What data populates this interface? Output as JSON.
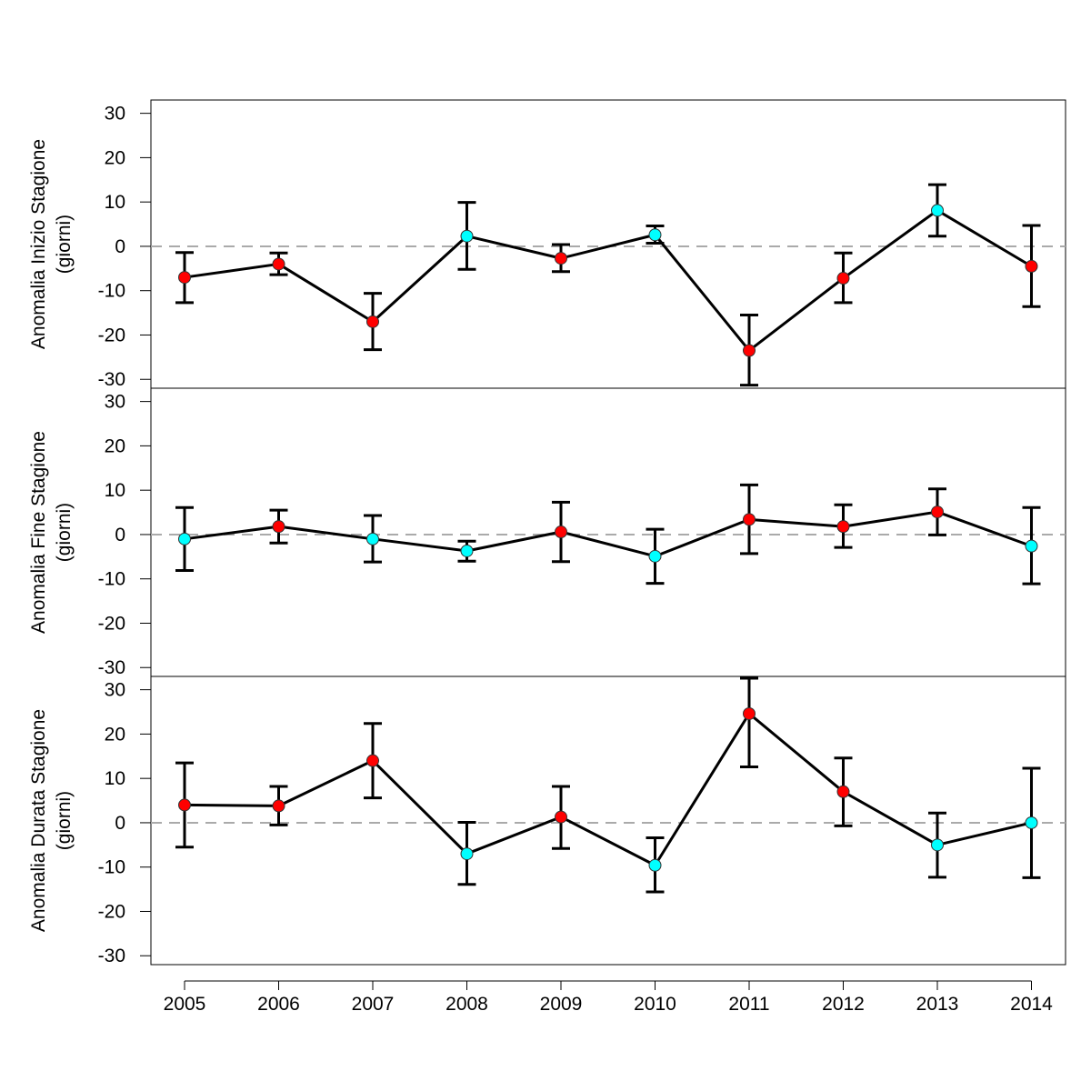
{
  "chart_data": [
    {
      "type": "line",
      "ylabel_line1": "Anomalia Inizio Stagione",
      "ylabel_line2": "(giorni)",
      "ylim": [
        -32,
        33
      ],
      "yticks": [
        -30,
        -20,
        -10,
        0,
        10,
        20,
        30
      ],
      "reference_line": 0,
      "x": [
        2005,
        2006,
        2007,
        2008,
        2009,
        2010,
        2011,
        2012,
        2013,
        2014
      ],
      "values": [
        -7,
        -4,
        -17,
        2.3,
        -2.7,
        2.6,
        -23.5,
        -7.2,
        8.1,
        -4.5
      ],
      "err_low": [
        -12.7,
        -6.4,
        -23.3,
        -5.2,
        -5.7,
        0.7,
        -31.3,
        -12.7,
        2.3,
        -13.6
      ],
      "err_high": [
        -1.4,
        -1.5,
        -10.6,
        9.9,
        0.4,
        4.6,
        -15.5,
        -1.5,
        13.9,
        4.7
      ],
      "point_colors": [
        "red",
        "red",
        "red",
        "cyan",
        "red",
        "cyan",
        "red",
        "red",
        "cyan",
        "red"
      ]
    },
    {
      "type": "line",
      "ylabel_line1": "Anomalia Fine Stagione",
      "ylabel_line2": "(giorni)",
      "ylim": [
        -32,
        33
      ],
      "yticks": [
        -30,
        -20,
        -10,
        0,
        10,
        20,
        30
      ],
      "reference_line": 0,
      "x": [
        2005,
        2006,
        2007,
        2008,
        2009,
        2010,
        2011,
        2012,
        2013,
        2014
      ],
      "values": [
        -1,
        1.8,
        -1,
        -3.7,
        0.6,
        -4.9,
        3.4,
        1.8,
        5.1,
        -2.6
      ],
      "err_low": [
        -8.1,
        -1.9,
        -6.2,
        -6,
        -6.1,
        -11,
        -4.3,
        -2.9,
        -0.1,
        -11.1
      ],
      "err_high": [
        6.1,
        5.5,
        4.3,
        -1.5,
        7.3,
        1.2,
        11.2,
        6.7,
        10.3,
        6.1
      ],
      "point_colors": [
        "cyan",
        "red",
        "cyan",
        "cyan",
        "red",
        "cyan",
        "red",
        "red",
        "red",
        "cyan"
      ]
    },
    {
      "type": "line",
      "ylabel_line1": "Anomalia Durata Stagione",
      "ylabel_line2": "(giorni)",
      "ylim": [
        -32,
        33
      ],
      "yticks": [
        -30,
        -20,
        -10,
        0,
        10,
        20,
        30
      ],
      "reference_line": 0,
      "x": [
        2005,
        2006,
        2007,
        2008,
        2009,
        2010,
        2011,
        2012,
        2013,
        2014
      ],
      "xtick_labels": [
        "2005",
        "2006",
        "2007",
        "2008",
        "2009",
        "2010",
        "2011",
        "2012",
        "2013",
        "2014"
      ],
      "values": [
        4,
        3.8,
        14,
        -7,
        1.3,
        -9.6,
        24.6,
        7,
        -5,
        0
      ],
      "err_low": [
        -5.5,
        -0.5,
        5.6,
        -13.9,
        -5.8,
        -15.6,
        12.6,
        -0.7,
        -12.3,
        -12.4
      ],
      "err_high": [
        13.5,
        8.2,
        22.4,
        0.1,
        8.2,
        -3.4,
        32.6,
        14.6,
        2.2,
        12.3
      ],
      "point_colors": [
        "red",
        "red",
        "red",
        "cyan",
        "red",
        "cyan",
        "red",
        "red",
        "cyan",
        "cyan"
      ]
    }
  ],
  "colors": {
    "red": "#ff0000",
    "cyan": "#00ffff",
    "line": "#000000",
    "reference": "#aaaaaa"
  }
}
